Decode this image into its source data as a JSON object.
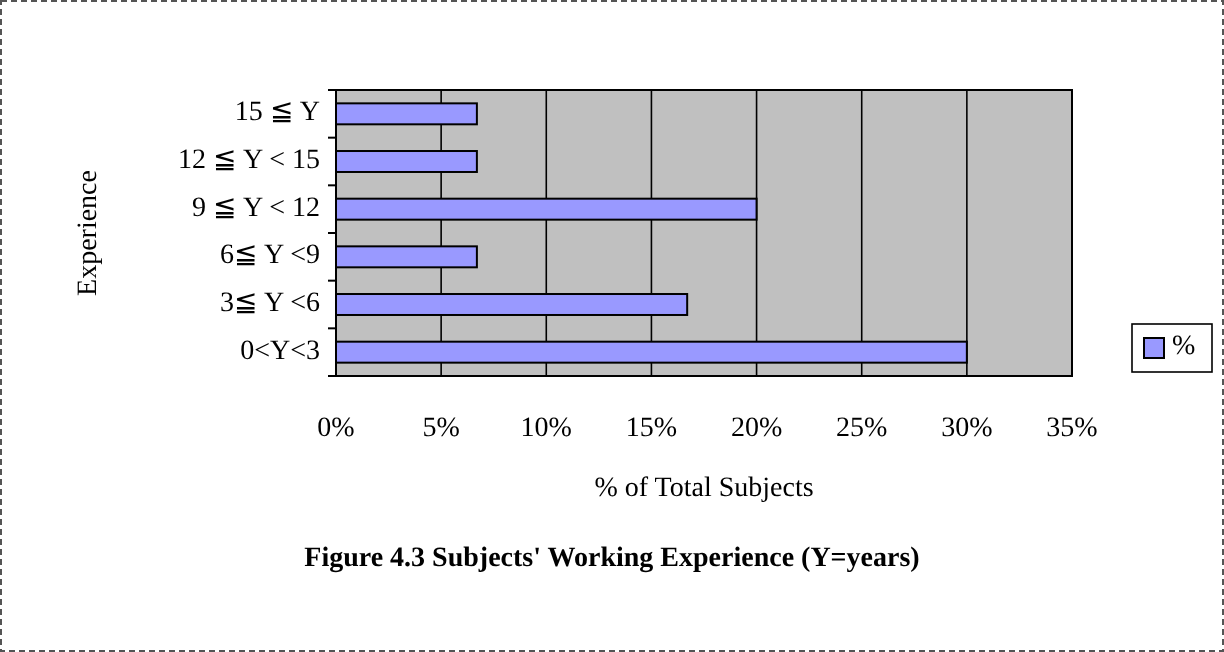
{
  "chart_data": {
    "type": "bar",
    "orientation": "horizontal",
    "title": "Figure 4.3 Subjects' Working Experience (Y=years)",
    "xlabel": "% of Total Subjects",
    "ylabel": "Experience",
    "categories": [
      "15 ≦ Y",
      "12 ≦ Y < 15",
      "9 ≦ Y < 12",
      "6≦ Y <9",
      "3≦ Y <6",
      "0<Y<3"
    ],
    "series": [
      {
        "name": "%",
        "color": "#9999ff",
        "values": [
          6.7,
          6.7,
          20,
          6.7,
          16.7,
          30
        ]
      }
    ],
    "xlim": [
      0,
      35
    ],
    "xticks": [
      {
        "value": 0,
        "label": "0%"
      },
      {
        "value": 5,
        "label": "5%"
      },
      {
        "value": 10,
        "label": "10%"
      },
      {
        "value": 15,
        "label": "15%"
      },
      {
        "value": 20,
        "label": "20%"
      },
      {
        "value": 25,
        "label": "25%"
      },
      {
        "value": 30,
        "label": "30%"
      },
      {
        "value": 35,
        "label": "35%"
      }
    ],
    "grid": "x",
    "legend": "right"
  }
}
